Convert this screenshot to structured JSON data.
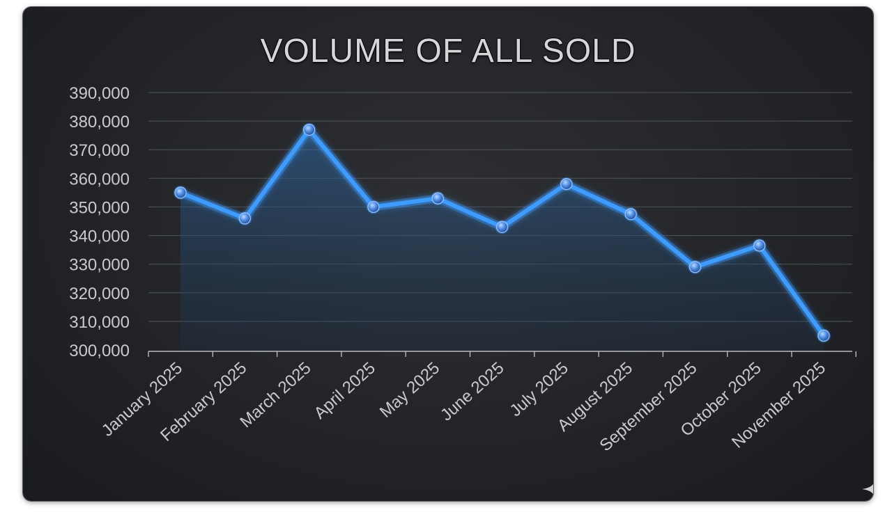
{
  "chart_data": {
    "type": "line",
    "title": "VOLUME OF ALL SOLD",
    "xlabel": "",
    "ylabel": "",
    "categories": [
      "January 2025",
      "February 2025",
      "March 2025",
      "April 2025",
      "May 2025",
      "June 2025",
      "July 2025",
      "August 2025",
      "September 2025",
      "October 2025",
      "November 2025"
    ],
    "series": [
      {
        "values": [
          355000,
          346000,
          377000,
          350000,
          353000,
          343000,
          358000,
          347500,
          329000,
          336500,
          305000
        ]
      }
    ],
    "ylim": [
      300000,
      390000
    ],
    "yticks": [
      "300,000",
      "310,000",
      "320,000",
      "330,000",
      "340,000",
      "350,000",
      "360,000",
      "370,000",
      "380,000",
      "390,000"
    ],
    "grid": true,
    "colors": {
      "line": "#3f9cff",
      "area": "#2d5f95",
      "marker": "#6aa8ff",
      "grid": "#4a4d52"
    }
  }
}
